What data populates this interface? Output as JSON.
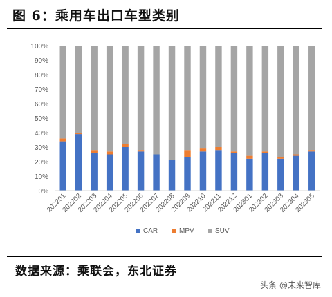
{
  "title": "图 6：乘用车出口车型类别",
  "source": "数据来源：乘联会，东北证券",
  "watermark": "头条 @未来智库",
  "colors": {
    "CAR": "#4472C4",
    "MPV": "#ED7D31",
    "SUV": "#A5A5A5"
  },
  "chart_data": {
    "type": "bar",
    "stacked": true,
    "categories": [
      "202201",
      "202202",
      "202203",
      "202204",
      "202205",
      "202206",
      "202207",
      "202208",
      "202209",
      "202210",
      "202211",
      "202212",
      "202301",
      "202302",
      "202303",
      "202304",
      "202305"
    ],
    "series": [
      {
        "name": "CAR",
        "values": [
          34,
          39,
          26,
          25,
          30,
          27,
          25,
          21,
          23,
          27,
          28,
          26,
          22,
          26,
          22,
          24,
          27
        ]
      },
      {
        "name": "MPV",
        "values": [
          2,
          1,
          2,
          2,
          2,
          1,
          0,
          0,
          5,
          2,
          2,
          1,
          2,
          1,
          1,
          1,
          1
        ]
      },
      {
        "name": "SUV",
        "values": [
          64,
          60,
          72,
          73,
          68,
          72,
          75,
          79,
          72,
          71,
          70,
          73,
          76,
          73,
          77,
          75,
          72
        ]
      }
    ],
    "ylim": [
      0,
      100
    ],
    "yticks": [
      "0%",
      "10%",
      "20%",
      "30%",
      "40%",
      "50%",
      "60%",
      "70%",
      "80%",
      "90%",
      "100%"
    ],
    "legend_position": "bottom",
    "grid": false
  }
}
